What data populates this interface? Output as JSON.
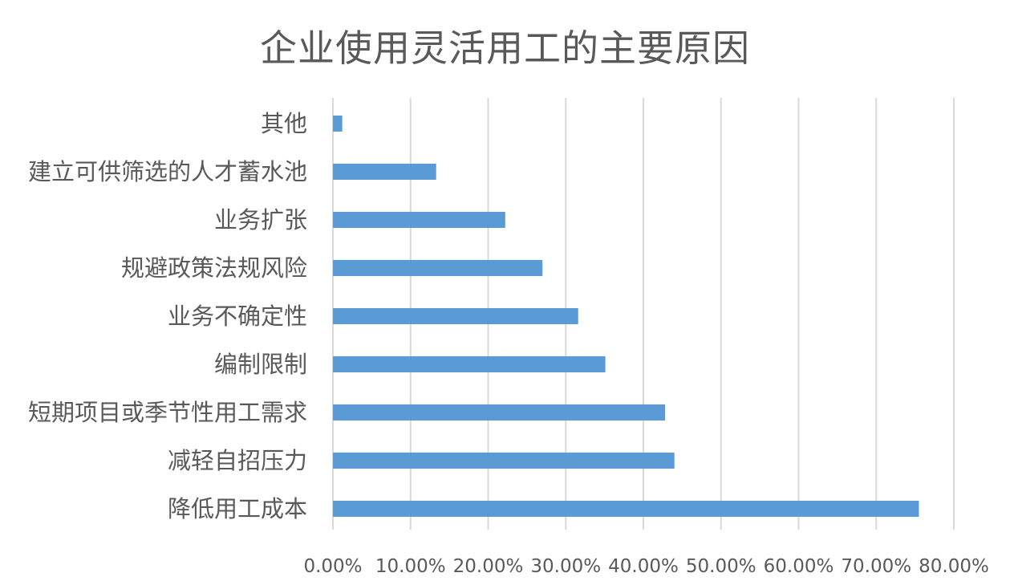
{
  "chart_data": {
    "type": "bar",
    "orientation": "horizontal",
    "title": "企业使用灵活用工的主要原因",
    "categories": [
      "降低用工成本",
      "减轻自招压力",
      "短期项目或季节性用工需求",
      "编制限制",
      "业务不确定性",
      "规避政策法规风险",
      "业务扩张",
      "建立可供筛选的人才蓄水池",
      "其他"
    ],
    "values": [
      75.5,
      44.0,
      42.8,
      35.1,
      31.6,
      27.0,
      22.2,
      13.3,
      1.2
    ],
    "xlim": [
      0,
      80
    ],
    "xticks": [
      0,
      10,
      20,
      30,
      40,
      50,
      60,
      70,
      80
    ],
    "xtick_labels": [
      "0.00%",
      "10.00%",
      "20.00%",
      "30.00%",
      "40.00%",
      "50.00%",
      "60.00%",
      "70.00%",
      "80.00%"
    ],
    "grid": "vertical",
    "legend": "none",
    "bar_color": "#5b9bd5",
    "grid_color": "#d9d9d9",
    "text_color": "#595959"
  }
}
